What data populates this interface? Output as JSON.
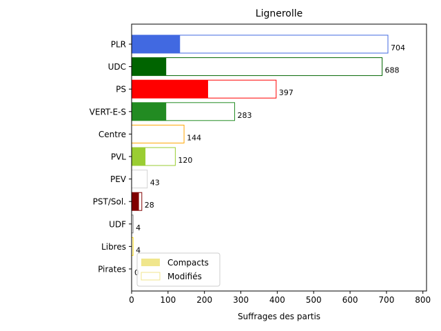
{
  "chart_data": {
    "type": "bar",
    "orientation": "horizontal",
    "title": "Lignerolle",
    "xlabel": "Suffrages des partis",
    "ylabel": "",
    "xlim": [
      0,
      810
    ],
    "xticks": [
      0,
      100,
      200,
      300,
      400,
      500,
      600,
      700,
      800
    ],
    "categories": [
      "PLR",
      "UDC",
      "PS",
      "VERT-E-S",
      "Centre",
      "PVL",
      "PEV",
      "PST/Sol.",
      "UDF",
      "Libres",
      "Pirates"
    ],
    "colors": [
      "#4169e1",
      "#006400",
      "#ff0000",
      "#228b22",
      "#ffa500",
      "#9acd32",
      "#d3d3d3",
      "#800000",
      "#808080",
      "#ffd700",
      "#d3d3d3"
    ],
    "series": [
      {
        "name": "Compacts",
        "values": [
          133,
          95,
          210,
          95,
          0,
          38,
          0,
          20,
          0,
          0,
          0
        ]
      },
      {
        "name": "Modifiés",
        "values": [
          704,
          688,
          397,
          283,
          144,
          120,
          43,
          28,
          4,
          4,
          0
        ]
      }
    ],
    "data_labels": [
      "704",
      "688",
      "397",
      "283",
      "144",
      "120",
      "43",
      "28",
      "4",
      "4",
      "0"
    ],
    "legend": {
      "placement": "lower-left",
      "entries": [
        {
          "label": "Compacts",
          "color": "#f0e68c"
        },
        {
          "label": "Modifiés",
          "color": "#f0e68c"
        }
      ]
    },
    "grid": false
  }
}
